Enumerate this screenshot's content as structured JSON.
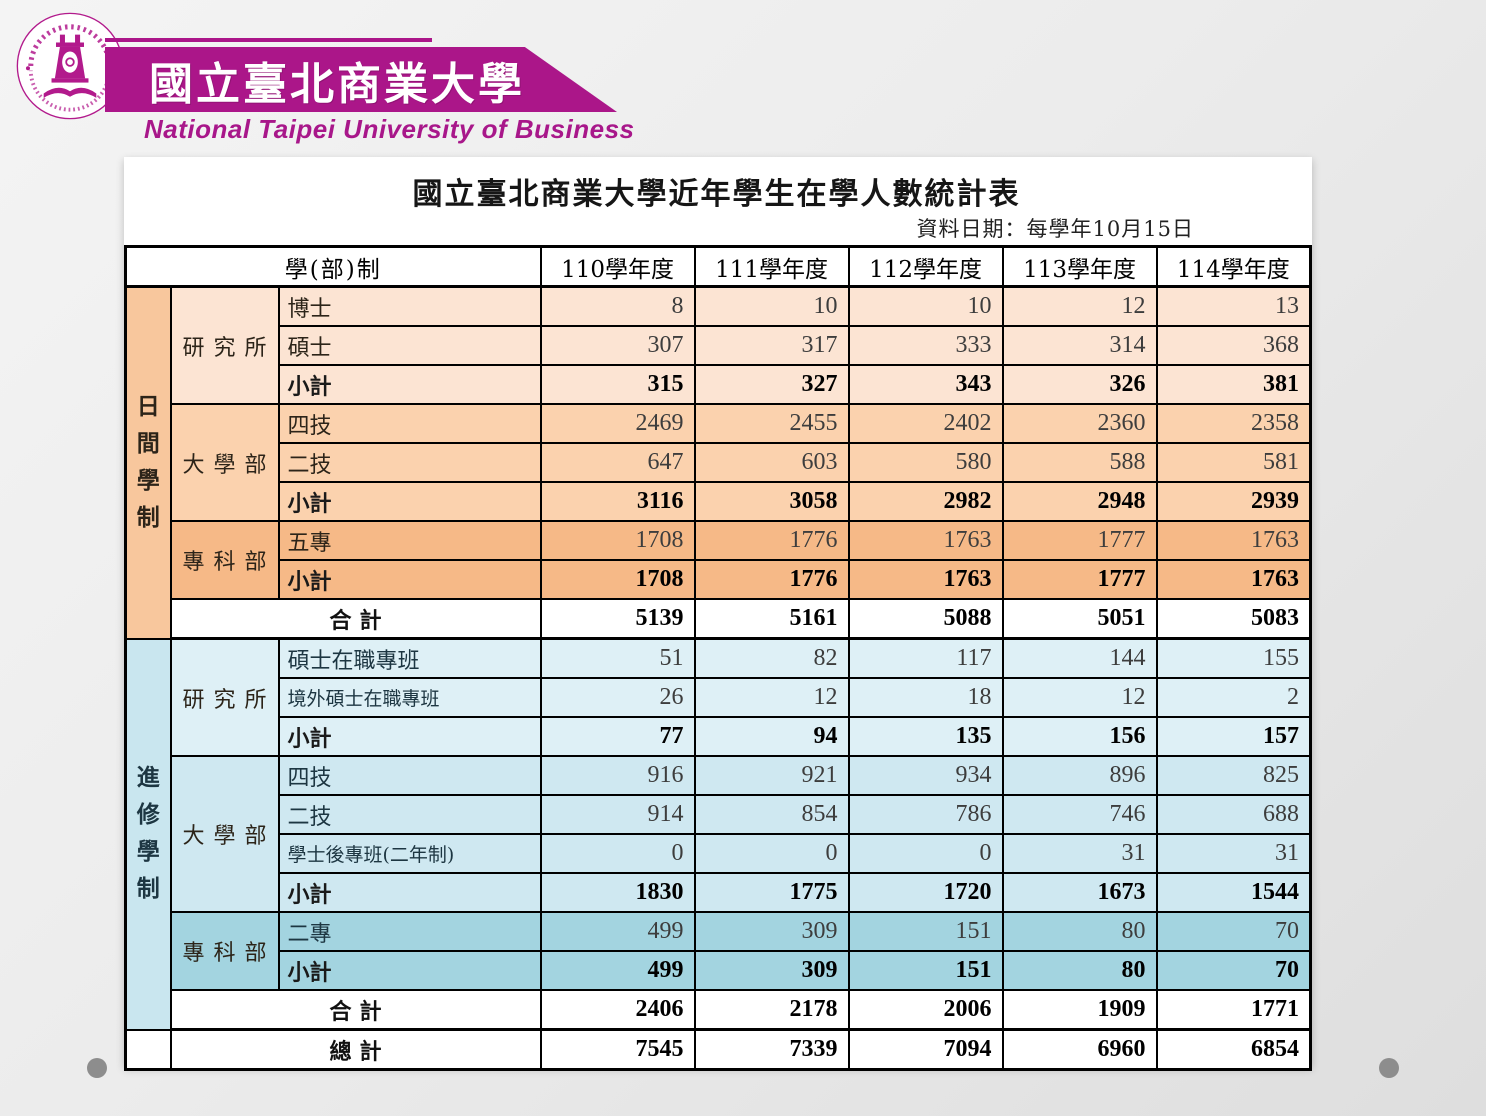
{
  "brand": {
    "university_zh": "國立臺北商業大學",
    "university_en": "National Taipei University of Business"
  },
  "report": {
    "title": "國立臺北商業大學近年學生在學人數統計表",
    "data_date_note": "資料日期：每學年10月15日"
  },
  "table": {
    "corner_header": "學(部)制",
    "year_headers": [
      "110學年度",
      "111學年度",
      "112學年度",
      "113學年度",
      "114學年度"
    ],
    "sections": [
      {
        "division": "日間學制",
        "groups": [
          {
            "dept": "研究所",
            "rows": [
              {
                "label": "博士",
                "bold": false,
                "values": [
                  "8",
                  "10",
                  "10",
                  "12",
                  "13"
                ]
              },
              {
                "label": "碩士",
                "bold": false,
                "values": [
                  "307",
                  "317",
                  "333",
                  "314",
                  "368"
                ]
              },
              {
                "label": "小計",
                "bold": true,
                "values": [
                  "315",
                  "327",
                  "343",
                  "326",
                  "381"
                ]
              }
            ]
          },
          {
            "dept": "大學部",
            "rows": [
              {
                "label": "四技",
                "bold": false,
                "values": [
                  "2469",
                  "2455",
                  "2402",
                  "2360",
                  "2358"
                ]
              },
              {
                "label": "二技",
                "bold": false,
                "values": [
                  "647",
                  "603",
                  "580",
                  "588",
                  "581"
                ]
              },
              {
                "label": "小計",
                "bold": true,
                "values": [
                  "3116",
                  "3058",
                  "2982",
                  "2948",
                  "2939"
                ]
              }
            ]
          },
          {
            "dept": "專科部",
            "rows": [
              {
                "label": "五專",
                "bold": false,
                "values": [
                  "1708",
                  "1776",
                  "1763",
                  "1777",
                  "1763"
                ]
              },
              {
                "label": "小計",
                "bold": true,
                "values": [
                  "1708",
                  "1776",
                  "1763",
                  "1777",
                  "1763"
                ]
              }
            ]
          }
        ],
        "total": {
          "label": "合計",
          "values": [
            "5139",
            "5161",
            "5088",
            "5051",
            "5083"
          ]
        }
      },
      {
        "division": "進修學制",
        "groups": [
          {
            "dept": "研究所",
            "rows": [
              {
                "label": "碩士在職專班",
                "bold": false,
                "values": [
                  "51",
                  "82",
                  "117",
                  "144",
                  "155"
                ]
              },
              {
                "label": "境外碩士在職專班",
                "bold": false,
                "values": [
                  "26",
                  "12",
                  "18",
                  "12",
                  "2"
                ]
              },
              {
                "label": "小計",
                "bold": true,
                "values": [
                  "77",
                  "94",
                  "135",
                  "156",
                  "157"
                ]
              }
            ]
          },
          {
            "dept": "大學部",
            "rows": [
              {
                "label": "四技",
                "bold": false,
                "values": [
                  "916",
                  "921",
                  "934",
                  "896",
                  "825"
                ]
              },
              {
                "label": "二技",
                "bold": false,
                "values": [
                  "914",
                  "854",
                  "786",
                  "746",
                  "688"
                ]
              },
              {
                "label": "學士後專班(二年制)",
                "bold": false,
                "values": [
                  "0",
                  "0",
                  "0",
                  "31",
                  "31"
                ]
              },
              {
                "label": "小計",
                "bold": true,
                "values": [
                  "1830",
                  "1775",
                  "1720",
                  "1673",
                  "1544"
                ]
              }
            ]
          },
          {
            "dept": "專科部",
            "rows": [
              {
                "label": "二專",
                "bold": false,
                "values": [
                  "499",
                  "309",
                  "151",
                  "80",
                  "70"
                ]
              },
              {
                "label": "小計",
                "bold": true,
                "values": [
                  "499",
                  "309",
                  "151",
                  "80",
                  "70"
                ]
              }
            ]
          }
        ],
        "total": {
          "label": "合計",
          "values": [
            "2406",
            "2178",
            "2006",
            "1909",
            "1771"
          ]
        }
      }
    ],
    "grand_total": {
      "label": "總計",
      "values": [
        "7545",
        "7339",
        "7094",
        "6960",
        "6854"
      ]
    }
  },
  "colors": {
    "brand_magenta": "#ab1689",
    "day_research": "#fce4d3",
    "day_university": "#fbd2ae",
    "day_college": "#f6b987",
    "day_division_col": "#f8c79d",
    "evening_research": "#def0f6",
    "evening_university": "#cfe8f1",
    "evening_college": "#a3d4e0",
    "evening_division_col": "#c9e6ef"
  }
}
